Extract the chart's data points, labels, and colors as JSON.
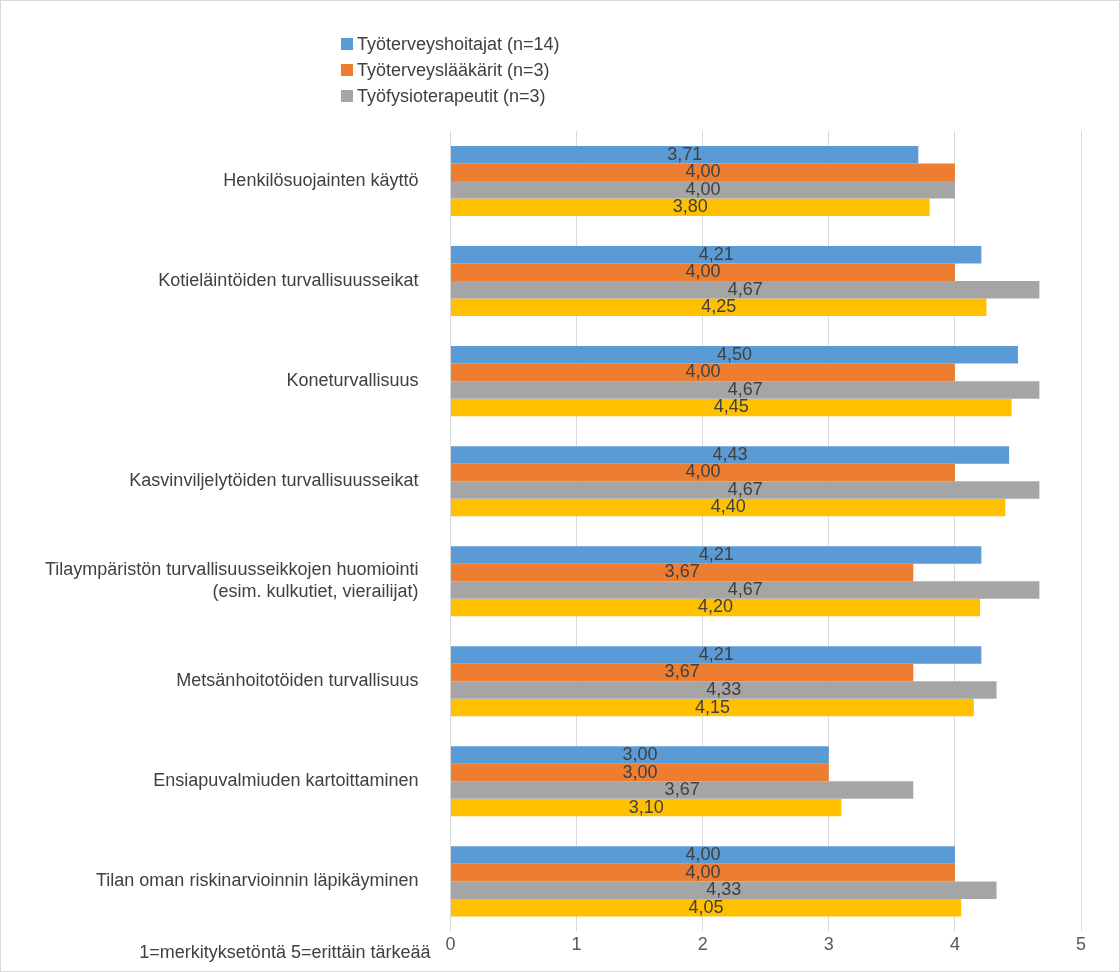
{
  "chart_data": {
    "type": "bar",
    "orientation": "horizontal",
    "categories": [
      "Henkilösuojainten käyttö",
      "Kotieläintöiden turvallisuusseikat",
      "Koneturvallisuus",
      "Kasvinviljelytöiden turvallisuusseikat",
      "Tilaympäristön turvallisuusseikkojen huomiointi (esim. kulkutiet, vierailijat)",
      "Metsänhoitotöiden turvallisuus",
      "Ensiapuvalmiuden kartoittaminen",
      "Tilan oman riskinarvioinnin läpikäyminen"
    ],
    "series": [
      {
        "name": "Työterveyshoitajat (n=14)",
        "color": "#5b9bd5",
        "values": [
          3.71,
          4.21,
          4.5,
          4.43,
          4.21,
          4.21,
          3.0,
          4.0
        ],
        "value_labels": [
          "3,71",
          "4,21",
          "4,50",
          "4,43",
          "4,21",
          "4,21",
          "3,00",
          "4,00"
        ]
      },
      {
        "name": "Työterveyslääkärit (n=3)",
        "color": "#ed7d31",
        "values": [
          4.0,
          4.0,
          4.0,
          4.0,
          3.67,
          3.67,
          3.0,
          4.0
        ],
        "value_labels": [
          "4,00",
          "4,00",
          "4,00",
          "4,00",
          "3,67",
          "3,67",
          "3,00",
          "4,00"
        ]
      },
      {
        "name": "Työfysioterapeutit (n=3)",
        "color": "#a5a5a5",
        "values": [
          4.0,
          4.67,
          4.67,
          4.67,
          4.67,
          4.33,
          3.67,
          4.33
        ],
        "value_labels": [
          "4,00",
          "4,67",
          "4,67",
          "4,67",
          "4,67",
          "4,33",
          "3,67",
          "4,33"
        ]
      },
      {
        "color": "#ffc000",
        "values": [
          3.8,
          4.25,
          4.45,
          4.4,
          4.2,
          4.15,
          3.1,
          4.05
        ],
        "value_labels": [
          "3,80",
          "4,25",
          "4,45",
          "4,40",
          "4,20",
          "4,15",
          "3,10",
          "4,05"
        ]
      }
    ],
    "xlim": [
      0,
      5
    ],
    "xticks": [
      0,
      1,
      2,
      3,
      4,
      5
    ],
    "grid": "x",
    "legend": "top",
    "annotations": [
      "1=merkityksetöntä 5=erittäin tärkeää"
    ]
  }
}
